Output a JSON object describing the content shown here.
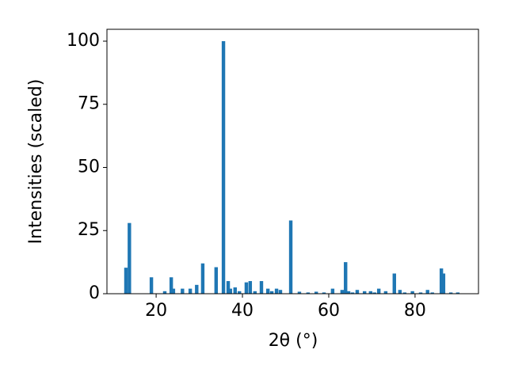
{
  "chart_data": {
    "type": "bar",
    "xlabel": "2θ (°)",
    "ylabel": "Intensities (scaled)",
    "color": "#1f77b4",
    "x": [
      13.0,
      13.8,
      18.9,
      22.0,
      23.5,
      24.0,
      26.1,
      27.9,
      29.4,
      30.8,
      33.9,
      35.6,
      36.7,
      37.2,
      38.3,
      39.3,
      40.9,
      41.8,
      42.9,
      44.4,
      45.9,
      46.8,
      47.9,
      48.8,
      51.2,
      53.2,
      55.2,
      57.1,
      58.9,
      60.9,
      63.1,
      63.9,
      64.6,
      65.5,
      66.6,
      68.3,
      69.7,
      70.6,
      71.6,
      73.2,
      75.2,
      76.5,
      77.6,
      79.4,
      81.3,
      82.9,
      84.0,
      86.1,
      86.6,
      88.3,
      89.9
    ],
    "values": [
      10.3,
      28,
      6.5,
      1,
      6.5,
      2,
      2,
      2,
      3.5,
      12,
      10.5,
      100,
      5,
      2,
      2.5,
      1,
      4.5,
      5,
      1,
      5,
      2,
      1,
      2,
      1.5,
      29,
      0.8,
      0.5,
      0.8,
      0.5,
      2,
      1.5,
      12.5,
      1,
      0.5,
      1.5,
      1,
      1,
      0.5,
      2,
      1,
      8,
      1.5,
      0.5,
      1,
      0.5,
      1.5,
      0.5,
      10,
      8,
      0.5,
      0.5
    ],
    "xlim": [
      8.6,
      94.7
    ],
    "ylim": [
      0,
      104.7
    ],
    "xticks": [
      20,
      40,
      60,
      80
    ],
    "yticks": [
      0,
      25,
      50,
      75,
      100
    ]
  }
}
